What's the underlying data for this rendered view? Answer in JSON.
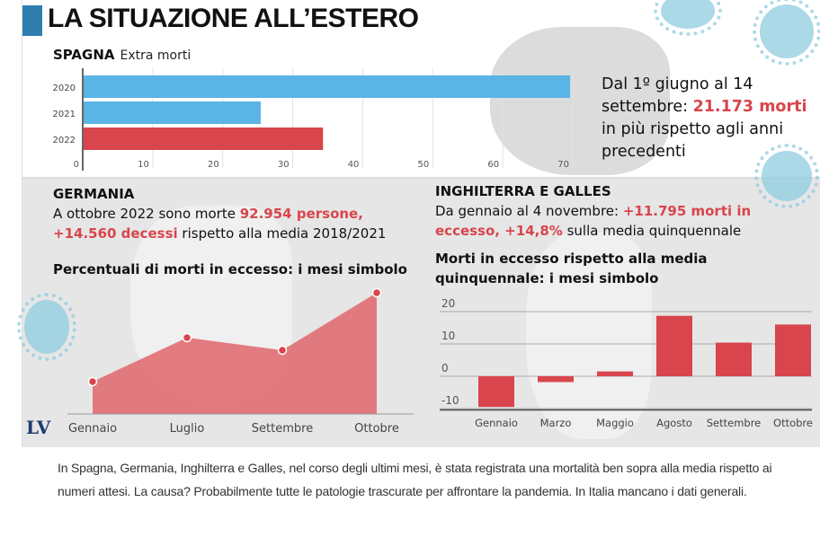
{
  "title": "LA SITUAZIONE ALL’ESTERO",
  "logo": "LV",
  "spagna": {
    "name": "SPAGNA",
    "subtitle": "Extra morti",
    "text_parts": [
      "Dal 1º giugno al 14 settembre: ",
      "21.173 morti",
      " in più rispetto agli anni precedenti"
    ]
  },
  "germania": {
    "name": "GERMANIA",
    "text_parts": [
      "A ottobre 2022 sono morte ",
      "92.954 persone",
      ", ",
      "+14.560 decessi",
      " rispetto alla media 2018/2021"
    ],
    "chart_title": "Percentuali di morti in eccesso: i mesi simbolo"
  },
  "inghilterra": {
    "name": "INGHILTERRA E GALLES",
    "text_parts": [
      "Da gennaio al 4 novembre: ",
      "+11.795 morti in eccesso, +14,8%",
      " sulla media quinquennale"
    ],
    "chart_title": "Morti in eccesso rispetto alla media quinquennale: i mesi simbolo"
  },
  "caption": "In Spagna, Germania, Inghilterra e Galles, nel corso degli ultimi mesi, è stata registrata una mortalità ben sopra alla media rispetto ai numeri attesi. La causa? Probabilmente tutte le patologie trascurate per affrontare la pandemia. In Italia mancano i dati generali.",
  "colors": {
    "blue": "#5ab4e5",
    "red": "#d9454c",
    "area": "#e07478",
    "accent": "#2e7fb0"
  },
  "chart_data": [
    {
      "type": "bar",
      "orientation": "horizontal",
      "title": "SPAGNA Extra morti",
      "categories": [
        "2020",
        "2021",
        "2022"
      ],
      "values": [
        69.5,
        25.3,
        34.2
      ],
      "bar_colors": [
        "#5ab4e5",
        "#5ab4e5",
        "#d9454c"
      ],
      "xlim": [
        0,
        70
      ],
      "xticks": [
        "0",
        "10",
        "20",
        "30",
        "40",
        "50",
        "60",
        "70"
      ],
      "grid": true
    },
    {
      "type": "area",
      "title": "Percentuali di morti in eccesso: i mesi simbolo",
      "categories": [
        "Gennaio",
        "Luglio",
        "Settembre",
        "Ottobre"
      ],
      "values": [
        3.6,
        8.5,
        7.1,
        13.5
      ],
      "ylim": [
        0,
        14
      ],
      "note": "no y-axis shown; values estimated relative"
    },
    {
      "type": "bar",
      "title": "Morti in eccesso rispetto alla media quinquennale: i mesi simbolo",
      "categories": [
        "Gennaio",
        "Marzo",
        "Maggio",
        "Agosto",
        "Settembre",
        "Ottobre"
      ],
      "values": [
        -9.5,
        -1.8,
        1.5,
        18.7,
        10.4,
        16
      ],
      "ylim": [
        -12,
        22
      ],
      "yticks": [
        "-10",
        "0",
        "10",
        "20"
      ],
      "grid": true
    }
  ]
}
